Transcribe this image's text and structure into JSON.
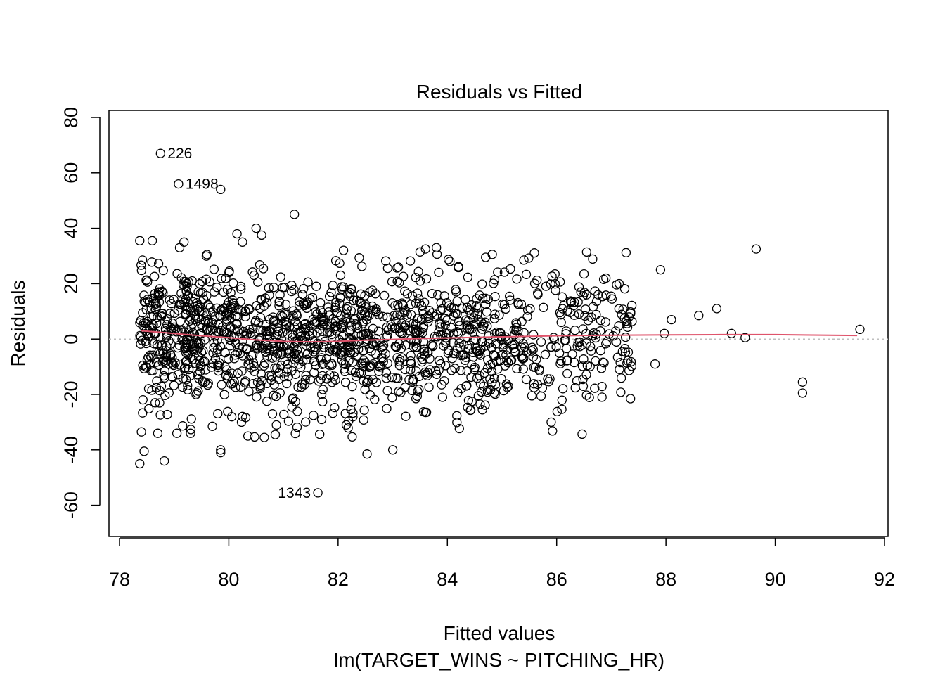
{
  "chart_data": {
    "type": "scatter",
    "title": "Residuals vs Fitted",
    "xlabel": "Fitted values",
    "subtitle": "lm(TARGET_WINS ~ PITCHING_HR)",
    "ylabel": "Residuals",
    "xlim": [
      78,
      92
    ],
    "ylim": [
      -70,
      80
    ],
    "x_ticks": [
      "78",
      "80",
      "82",
      "84",
      "86",
      "88",
      "90",
      "92"
    ],
    "y_ticks": [
      "-60",
      "-40",
      "-20",
      "0",
      "20",
      "40",
      "60",
      "80"
    ],
    "grid": false,
    "legend": "none",
    "colors": {
      "points": "#000000",
      "smooth": "#DF536B",
      "reference": "#BEBEBE"
    },
    "labeled_points": [
      {
        "label": "226",
        "x": 78.75,
        "y": 67
      },
      {
        "label": "1498",
        "x": 79.08,
        "y": 56
      },
      {
        "label": "1343",
        "x": 81.63,
        "y": -55.5
      }
    ],
    "smooth_line": {
      "x": [
        78.4,
        79.0,
        79.5,
        80.0,
        80.5,
        81.0,
        81.5,
        82.0,
        82.5,
        83.0,
        83.5,
        84.0,
        84.5,
        85.0,
        85.5,
        86.0,
        86.5,
        87.0,
        88.0,
        89.0,
        90.0,
        91.5
      ],
      "y": [
        3.0,
        2.0,
        1.2,
        0.5,
        -0.3,
        -0.8,
        -1.0,
        -0.8,
        -0.4,
        -0.1,
        0.2,
        0.4,
        0.6,
        0.8,
        1.0,
        1.2,
        1.3,
        1.4,
        1.5,
        1.6,
        1.6,
        1.3
      ]
    },
    "reference_y": 0,
    "extreme_points": [
      {
        "x": 79.85,
        "y": 54
      },
      {
        "x": 81.2,
        "y": 45
      },
      {
        "x": 80.5,
        "y": 40
      },
      {
        "x": 80.15,
        "y": 38
      },
      {
        "x": 80.6,
        "y": 37.5
      },
      {
        "x": 80.25,
        "y": 35
      },
      {
        "x": 78.37,
        "y": 35.5
      },
      {
        "x": 78.6,
        "y": 35.5
      },
      {
        "x": 79.1,
        "y": 33
      },
      {
        "x": 79.18,
        "y": 35
      },
      {
        "x": 79.6,
        "y": 30.5
      },
      {
        "x": 83.8,
        "y": 33
      },
      {
        "x": 83.6,
        "y": 32.5
      },
      {
        "x": 82.1,
        "y": 32
      },
      {
        "x": 89.65,
        "y": 32.5
      },
      {
        "x": 87.9,
        "y": 25
      },
      {
        "x": 88.93,
        "y": 11
      },
      {
        "x": 88.6,
        "y": 8.5
      },
      {
        "x": 88.1,
        "y": 7
      },
      {
        "x": 87.97,
        "y": 2
      },
      {
        "x": 89.2,
        "y": 2
      },
      {
        "x": 89.45,
        "y": 0.5
      },
      {
        "x": 91.55,
        "y": 3.5
      },
      {
        "x": 90.5,
        "y": -15.5
      },
      {
        "x": 90.5,
        "y": -19.5
      },
      {
        "x": 87.8,
        "y": -9
      },
      {
        "x": 86.83,
        "y": -21
      },
      {
        "x": 85.9,
        "y": -30
      },
      {
        "x": 84.7,
        "y": 29.5
      },
      {
        "x": 85.4,
        "y": 28.5
      },
      {
        "x": 86.5,
        "y": 23.5
      },
      {
        "x": 86.9,
        "y": 22
      },
      {
        "x": 82.53,
        "y": -41.5
      },
      {
        "x": 83.0,
        "y": -40
      },
      {
        "x": 79.85,
        "y": -40
      },
      {
        "x": 79.85,
        "y": -41
      },
      {
        "x": 78.37,
        "y": -45
      },
      {
        "x": 78.82,
        "y": -44
      },
      {
        "x": 80.35,
        "y": -35
      },
      {
        "x": 80.65,
        "y": -35.5
      },
      {
        "x": 80.85,
        "y": -34.5
      },
      {
        "x": 78.7,
        "y": -34
      },
      {
        "x": 79.05,
        "y": -34
      },
      {
        "x": 79.3,
        "y": -34
      },
      {
        "x": 78.45,
        "y": -40.5
      },
      {
        "x": 78.4,
        "y": -33.5
      },
      {
        "x": 79.7,
        "y": -31.5
      },
      {
        "x": 81.7,
        "y": -29
      },
      {
        "x": 82.15,
        "y": -31
      },
      {
        "x": 83.6,
        "y": -26.5
      },
      {
        "x": 84.6,
        "y": -23.5
      },
      {
        "x": 84.45,
        "y": -22.5
      }
    ]
  }
}
